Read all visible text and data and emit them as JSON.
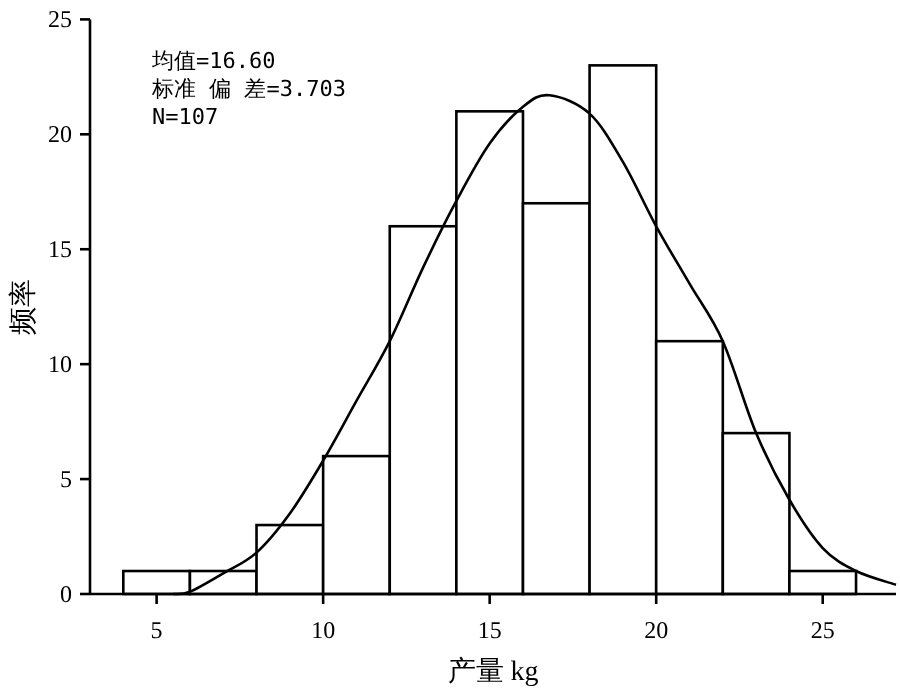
{
  "chart_data": {
    "type": "histogram",
    "xlabel": "产量 kg",
    "ylabel": "频率",
    "annotations": [
      "均值=16.60",
      "标准 偏 差=3.703",
      "N=107"
    ],
    "bins": [
      4,
      6,
      8,
      10,
      12,
      14,
      16,
      18,
      20,
      22,
      24,
      26
    ],
    "values": [
      1,
      1,
      3,
      6,
      16,
      21,
      17,
      23,
      11,
      7,
      1
    ],
    "color": "#ffffff",
    "series": [
      {
        "type": "line",
        "color": "#000000",
        "x": [
          5.5,
          6,
          7,
          8,
          9,
          10,
          11,
          12,
          13,
          14,
          15,
          16,
          16.8,
          18,
          19,
          20,
          21,
          22,
          23,
          24,
          25,
          26,
          27.2
        ],
        "values": [
          0,
          0.1,
          0.9,
          1.8,
          3.5,
          5.8,
          8.4,
          11.0,
          14.2,
          17.1,
          19.6,
          21.2,
          21.7,
          20.9,
          18.8,
          16.0,
          13.5,
          11.0,
          7.0,
          4.1,
          2.0,
          1.0,
          0.4
        ]
      }
    ],
    "xlim": [
      3,
      27.2
    ],
    "ylim": [
      0,
      25
    ],
    "xticks": [
      5,
      10,
      15,
      20,
      25
    ],
    "yticks": [
      0,
      5,
      10,
      15,
      20,
      25
    ],
    "grid": false,
    "marker": "none",
    "line_style": "solid"
  }
}
